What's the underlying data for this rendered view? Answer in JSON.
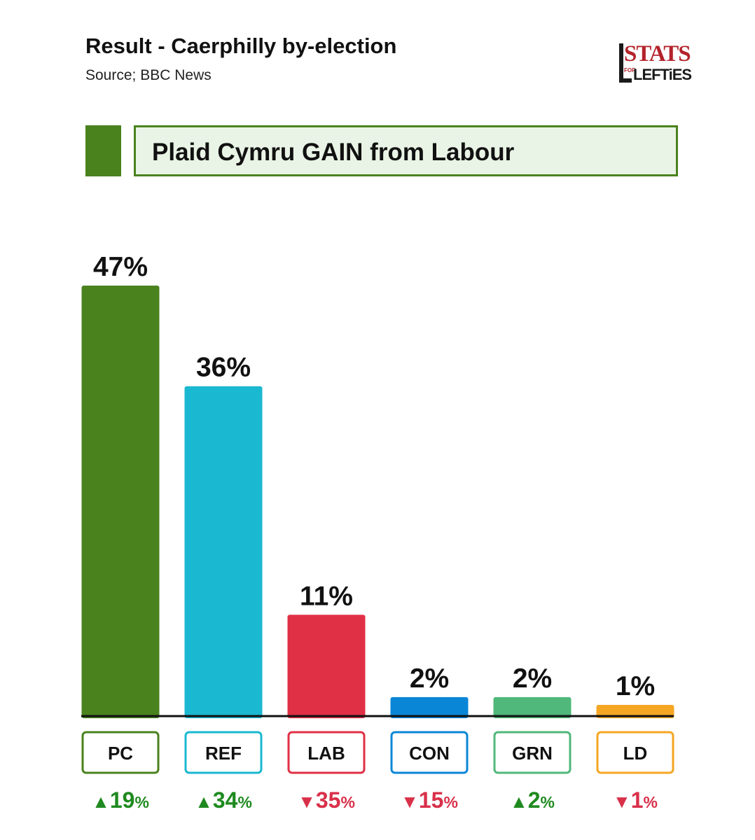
{
  "header": {
    "title": "Result - Caerphilly by-election",
    "source": "Source; BBC News"
  },
  "logo": {
    "top_text": "STATS",
    "small_text": "FOR",
    "bottom_text": "LEFTiES"
  },
  "banner": {
    "text": "Plaid Cymru GAIN from Labour",
    "color": "#4a821e"
  },
  "colors": {
    "up": "#1f8a1f",
    "down": "#d9304a",
    "axis": "#111111"
  },
  "chart_data": {
    "type": "bar",
    "categories": [
      "PC",
      "REF",
      "LAB",
      "CON",
      "GRN",
      "LD"
    ],
    "values": [
      47,
      36,
      11,
      2,
      2,
      1
    ],
    "value_labels": [
      "47%",
      "36%",
      "11%",
      "2%",
      "2%",
      "1%"
    ],
    "changes": [
      {
        "direction": "up",
        "value": "19",
        "unit": "%"
      },
      {
        "direction": "up",
        "value": "34",
        "unit": "%"
      },
      {
        "direction": "down",
        "value": "35",
        "unit": "%"
      },
      {
        "direction": "down",
        "value": "15",
        "unit": "%"
      },
      {
        "direction": "up",
        "value": "2",
        "unit": "%"
      },
      {
        "direction": "down",
        "value": "1",
        "unit": "%"
      }
    ],
    "bar_colors": [
      "#4a821e",
      "#1bb8d1",
      "#e03046",
      "#0a86d6",
      "#4fb87a",
      "#f5a623"
    ],
    "ylim": [
      0,
      47
    ],
    "grid": false,
    "legend": "none"
  }
}
